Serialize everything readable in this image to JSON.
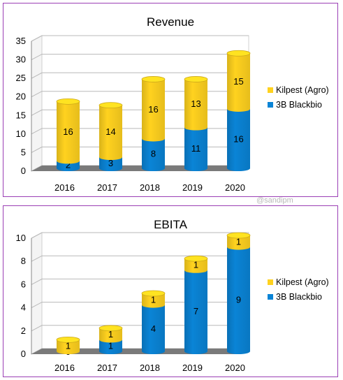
{
  "watermark": "@sandipm",
  "colors": {
    "kilpest": "#FFD21F",
    "blackbio": "#0A84D6",
    "frame": "#9B3FB5"
  },
  "chart_data": [
    {
      "type": "bar",
      "stacked": true,
      "title": "Revenue",
      "categories": [
        "2016",
        "2017",
        "2018",
        "2019",
        "2020"
      ],
      "series": [
        {
          "name": "3B Blackbio",
          "values": [
            2,
            3,
            8,
            11,
            16
          ]
        },
        {
          "name": "Kilpest (Agro)",
          "values": [
            16,
            14,
            16,
            13,
            15
          ]
        }
      ],
      "yticks": [
        0,
        5,
        10,
        15,
        20,
        25,
        30,
        35
      ],
      "ylim": [
        0,
        35
      ],
      "grid": true,
      "legend": "right"
    },
    {
      "type": "bar",
      "stacked": true,
      "title": "EBITA",
      "categories": [
        "2016",
        "2017",
        "2018",
        "2019",
        "2020"
      ],
      "series": [
        {
          "name": "3B Blackbio",
          "values": [
            0,
            1,
            4,
            7,
            9
          ]
        },
        {
          "name": "Kilpest (Agro)",
          "values": [
            1,
            1,
            1,
            1,
            1
          ]
        }
      ],
      "yticks": [
        0,
        2,
        4,
        6,
        8,
        10
      ],
      "ylim": [
        0,
        10
      ],
      "grid": true,
      "legend": "right"
    }
  ]
}
